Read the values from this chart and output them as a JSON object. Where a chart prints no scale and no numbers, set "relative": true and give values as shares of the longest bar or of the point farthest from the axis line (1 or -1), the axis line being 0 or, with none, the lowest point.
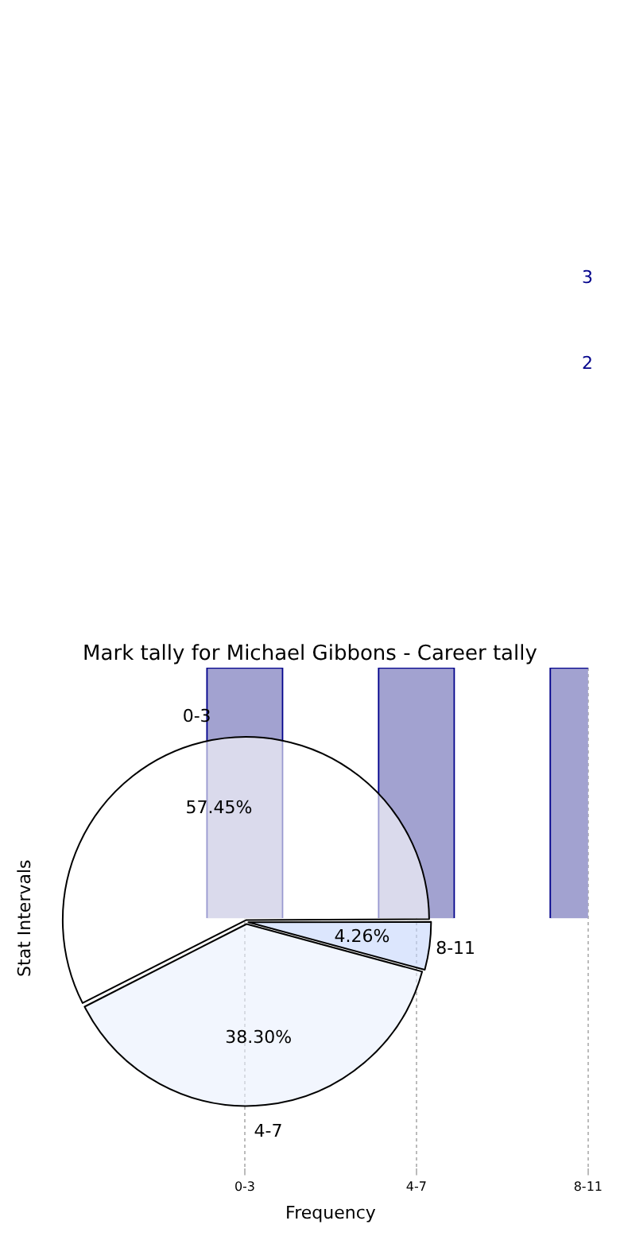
{
  "chart_data": [
    {
      "type": "pie",
      "title": "Mark tally for Michael Gibbons - Career tally",
      "categories": [
        "0-3",
        "8-11",
        "4-7"
      ],
      "values": [
        57.45,
        4.26,
        38.3
      ],
      "value_labels": [
        "57.45%",
        "4.26%",
        "38.30%"
      ],
      "colors": [
        "#ffffff",
        "#c4d6fc",
        "#eaf0fd"
      ],
      "legend": false
    },
    {
      "type": "bar",
      "relative": true,
      "categories": [
        "0-3",
        "4-7",
        "8-11"
      ],
      "values": [
        1,
        1,
        1
      ],
      "color": "#a2a2d0",
      "xlabel": "Frequency",
      "ylabel": "Stat Intervals",
      "grid": "x",
      "legend": false,
      "annotations": [
        "3",
        "2"
      ]
    }
  ]
}
